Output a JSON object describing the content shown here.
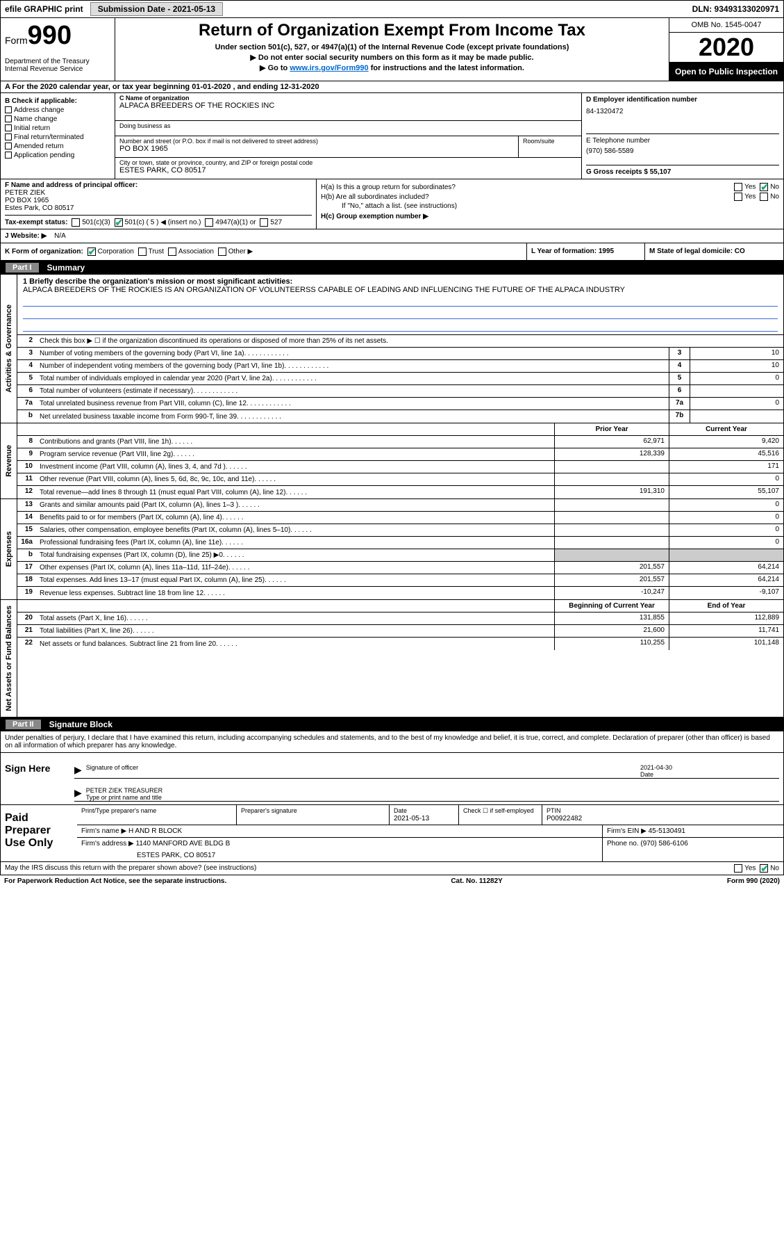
{
  "topbar": {
    "efile": "efile GRAPHIC print",
    "submission_label": "Submission Date - 2021-05-13",
    "dln": "DLN: 93493133020971"
  },
  "header": {
    "form_label": "Form",
    "form_num": "990",
    "dept": "Department of the Treasury\nInternal Revenue Service",
    "title": "Return of Organization Exempt From Income Tax",
    "sub1": "Under section 501(c), 527, or 4947(a)(1) of the Internal Revenue Code (except private foundations)",
    "sub2": "Do not enter social security numbers on this form as it may be made public.",
    "sub3_pre": "Go to ",
    "sub3_link": "www.irs.gov/Form990",
    "sub3_post": " for instructions and the latest information.",
    "omb": "OMB No. 1545-0047",
    "year": "2020",
    "open": "Open to Public Inspection"
  },
  "row_a": "A   For the 2020 calendar year, or tax year beginning 01-01-2020   , and ending 12-31-2020",
  "col_b": {
    "hdr": "B Check if applicable:",
    "items": [
      "Address change",
      "Name change",
      "Initial return",
      "Final return/terminated",
      "Amended return",
      "Application pending"
    ]
  },
  "col_c": {
    "name_label": "C Name of organization",
    "name": "ALPACA BREEDERS OF THE ROCKIES INC",
    "dba_label": "Doing business as",
    "addr_label": "Number and street (or P.O. box if mail is not delivered to street address)",
    "addr": "PO BOX 1965",
    "room_label": "Room/suite",
    "city_label": "City or town, state or province, country, and ZIP or foreign postal code",
    "city": "ESTES PARK, CO  80517"
  },
  "col_d": {
    "ein_label": "D Employer identification number",
    "ein": "84-1320472",
    "tel_label": "E Telephone number",
    "tel": "(970) 586-5589",
    "gross_label": "G Gross receipts $ 55,107"
  },
  "col_f": {
    "label": "F  Name and address of principal officer:",
    "name": "PETER ZIEK",
    "addr1": "PO BOX 1965",
    "addr2": "Estes Park, CO  80517"
  },
  "col_h": {
    "ha": "H(a)  Is this a group return for subordinates?",
    "hb": "H(b)  Are all subordinates included?",
    "hb_note": "If \"No,\" attach a list. (see instructions)",
    "hc": "H(c)  Group exemption number ▶",
    "yes": "Yes",
    "no": "No"
  },
  "tax_status": {
    "label": "Tax-exempt status:",
    "c3": "501(c)(3)",
    "c5": "501(c) ( 5 ) ◀ (insert no.)",
    "a1": "4947(a)(1) or",
    "s527": "527"
  },
  "website": {
    "label": "J   Website: ▶",
    "val": "N/A"
  },
  "klm": {
    "k": "K Form of organization:",
    "k_corp": "Corporation",
    "k_trust": "Trust",
    "k_assoc": "Association",
    "k_other": "Other ▶",
    "l": "L Year of formation: 1995",
    "m": "M State of legal domicile: CO"
  },
  "part1": {
    "hdr_box": "Part I",
    "hdr": "Summary",
    "vlabel_ag": "Activities & Governance",
    "vlabel_rev": "Revenue",
    "vlabel_exp": "Expenses",
    "vlabel_na": "Net Assets or Fund Balances",
    "q1_label": "1  Briefly describe the organization's mission or most significant activities:",
    "q1_text": "ALPACA BREEDERS OF THE ROCKIES IS AN ORGANIZATION OF VOLUNTEERSS CAPABLE OF LEADING AND INFLUENCING THE FUTURE OF THE ALPACA INDUSTRY",
    "q2": "Check this box ▶ ☐  if the organization discontinued its operations or disposed of more than 25% of its net assets.",
    "rows_ag": [
      {
        "n": "3",
        "label": "Number of voting members of the governing body (Part VI, line 1a)",
        "box": "3",
        "val": "10"
      },
      {
        "n": "4",
        "label": "Number of independent voting members of the governing body (Part VI, line 1b)",
        "box": "4",
        "val": "10"
      },
      {
        "n": "5",
        "label": "Total number of individuals employed in calendar year 2020 (Part V, line 2a)",
        "box": "5",
        "val": "0"
      },
      {
        "n": "6",
        "label": "Total number of volunteers (estimate if necessary)",
        "box": "6",
        "val": ""
      },
      {
        "n": "7a",
        "label": "Total unrelated business revenue from Part VIII, column (C), line 12",
        "box": "7a",
        "val": "0"
      },
      {
        "n": "b",
        "label": "Net unrelated business taxable income from Form 990-T, line 39",
        "box": "7b",
        "val": ""
      }
    ],
    "prior_hdr": "Prior Year",
    "curr_hdr": "Current Year",
    "rows_rev": [
      {
        "n": "8",
        "label": "Contributions and grants (Part VIII, line 1h)",
        "py": "62,971",
        "cy": "9,420"
      },
      {
        "n": "9",
        "label": "Program service revenue (Part VIII, line 2g)",
        "py": "128,339",
        "cy": "45,516"
      },
      {
        "n": "10",
        "label": "Investment income (Part VIII, column (A), lines 3, 4, and 7d )",
        "py": "",
        "cy": "171"
      },
      {
        "n": "11",
        "label": "Other revenue (Part VIII, column (A), lines 5, 6d, 8c, 9c, 10c, and 11e)",
        "py": "",
        "cy": "0"
      },
      {
        "n": "12",
        "label": "Total revenue—add lines 8 through 11 (must equal Part VIII, column (A), line 12)",
        "py": "191,310",
        "cy": "55,107"
      }
    ],
    "rows_exp": [
      {
        "n": "13",
        "label": "Grants and similar amounts paid (Part IX, column (A), lines 1–3 )",
        "py": "",
        "cy": "0"
      },
      {
        "n": "14",
        "label": "Benefits paid to or for members (Part IX, column (A), line 4)",
        "py": "",
        "cy": "0"
      },
      {
        "n": "15",
        "label": "Salaries, other compensation, employee benefits (Part IX, column (A), lines 5–10)",
        "py": "",
        "cy": "0"
      },
      {
        "n": "16a",
        "label": "Professional fundraising fees (Part IX, column (A), line 11e)",
        "py": "",
        "cy": "0"
      },
      {
        "n": "b",
        "label": "Total fundraising expenses (Part IX, column (D), line 25) ▶0",
        "py": "shade",
        "cy": "shade"
      },
      {
        "n": "17",
        "label": "Other expenses (Part IX, column (A), lines 11a–11d, 11f–24e)",
        "py": "201,557",
        "cy": "64,214"
      },
      {
        "n": "18",
        "label": "Total expenses. Add lines 13–17 (must equal Part IX, column (A), line 25)",
        "py": "201,557",
        "cy": "64,214"
      },
      {
        "n": "19",
        "label": "Revenue less expenses. Subtract line 18 from line 12",
        "py": "-10,247",
        "cy": "-9,107"
      }
    ],
    "begin_hdr": "Beginning of Current Year",
    "end_hdr": "End of Year",
    "rows_na": [
      {
        "n": "20",
        "label": "Total assets (Part X, line 16)",
        "py": "131,855",
        "cy": "112,889"
      },
      {
        "n": "21",
        "label": "Total liabilities (Part X, line 26)",
        "py": "21,600",
        "cy": "11,741"
      },
      {
        "n": "22",
        "label": "Net assets or fund balances. Subtract line 21 from line 20",
        "py": "110,255",
        "cy": "101,148"
      }
    ]
  },
  "part2": {
    "hdr_box": "Part II",
    "hdr": "Signature Block",
    "intro": "Under penalties of perjury, I declare that I have examined this return, including accompanying schedules and statements, and to the best of my knowledge and belief, it is true, correct, and complete. Declaration of preparer (other than officer) is based on all information of which preparer has any knowledge.",
    "sign_here": "Sign Here",
    "sig_officer": "Signature of officer",
    "date_label": "Date",
    "date_val": "2021-04-30",
    "name_title": "PETER ZIEK  TREASURER",
    "type_label": "Type or print name and title",
    "paid_prep": "Paid Preparer Use Only",
    "print_name_label": "Print/Type preparer's name",
    "prep_sig_label": "Preparer's signature",
    "prep_date_label": "Date",
    "prep_date": "2021-05-13",
    "check_self": "Check ☐ if self-employed",
    "ptin_label": "PTIN",
    "ptin": "P00922482",
    "firm_name_label": "Firm's name   ▶",
    "firm_name": "H AND R BLOCK",
    "firm_ein_label": "Firm's EIN ▶",
    "firm_ein": "45-5130491",
    "firm_addr_label": "Firm's address ▶",
    "firm_addr1": "1140 MANFORD AVE BLDG B",
    "firm_addr2": "ESTES PARK, CO  80517",
    "phone_label": "Phone no.",
    "phone": "(970) 586-6106",
    "discuss": "May the IRS discuss this return with the preparer shown above? (see instructions)"
  },
  "footer": {
    "paperwork": "For Paperwork Reduction Act Notice, see the separate instructions.",
    "cat": "Cat. No. 11282Y",
    "form": "Form 990 (2020)"
  }
}
